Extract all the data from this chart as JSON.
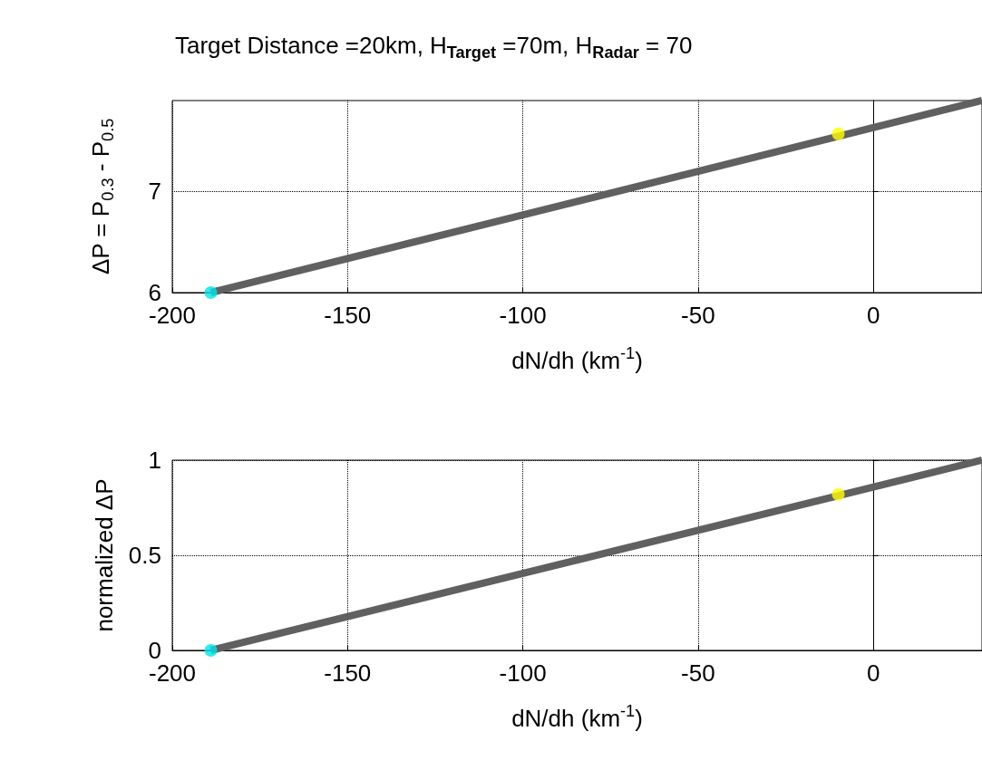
{
  "chart_data": [
    {
      "type": "line",
      "title": "Target Distance =20km, H$_{Target}$ =70m, H$_{Radar}$ = 70",
      "xlabel": "dN/dh (km$^{-1}$)",
      "ylabel": "ΔP = P$_{0.3}$ - P$_{0.5}$",
      "xlim": [
        -200,
        31
      ],
      "xticks": [
        -200,
        -150,
        -100,
        -50,
        0
      ],
      "ylim": [
        6,
        7.9
      ],
      "yticks": [
        6,
        7
      ],
      "grid": true,
      "series": [
        {
          "type": "line",
          "color": "#606060",
          "x": [
            -189,
            31
          ],
          "values": [
            6,
            7.9
          ],
          "marker": "none"
        },
        {
          "type": "scatter",
          "color": "#00e5ee",
          "x": [
            -189
          ],
          "values": [
            6
          ],
          "marker": "circle"
        },
        {
          "type": "scatter",
          "color": "#ffff00",
          "x": [
            -10
          ],
          "values": [
            7.57
          ],
          "marker": "circle"
        }
      ]
    },
    {
      "type": "line",
      "xlabel": "dN/dh (km$^{-1}$)",
      "ylabel": "normalized ΔP",
      "xlim": [
        -200,
        31
      ],
      "xticks": [
        -200,
        -150,
        -100,
        -50,
        0
      ],
      "ylim": [
        0,
        1
      ],
      "yticks": [
        0,
        0.5,
        1
      ],
      "grid": true,
      "series": [
        {
          "type": "line",
          "color": "#606060",
          "x": [
            -189,
            31
          ],
          "values": [
            0,
            1
          ],
          "marker": "none"
        },
        {
          "type": "scatter",
          "color": "#00e5ee",
          "x": [
            -189
          ],
          "values": [
            0
          ],
          "marker": "circle"
        },
        {
          "type": "scatter",
          "color": "#ffff00",
          "x": [
            -10
          ],
          "values": [
            0.82
          ],
          "marker": "circle"
        }
      ]
    }
  ]
}
